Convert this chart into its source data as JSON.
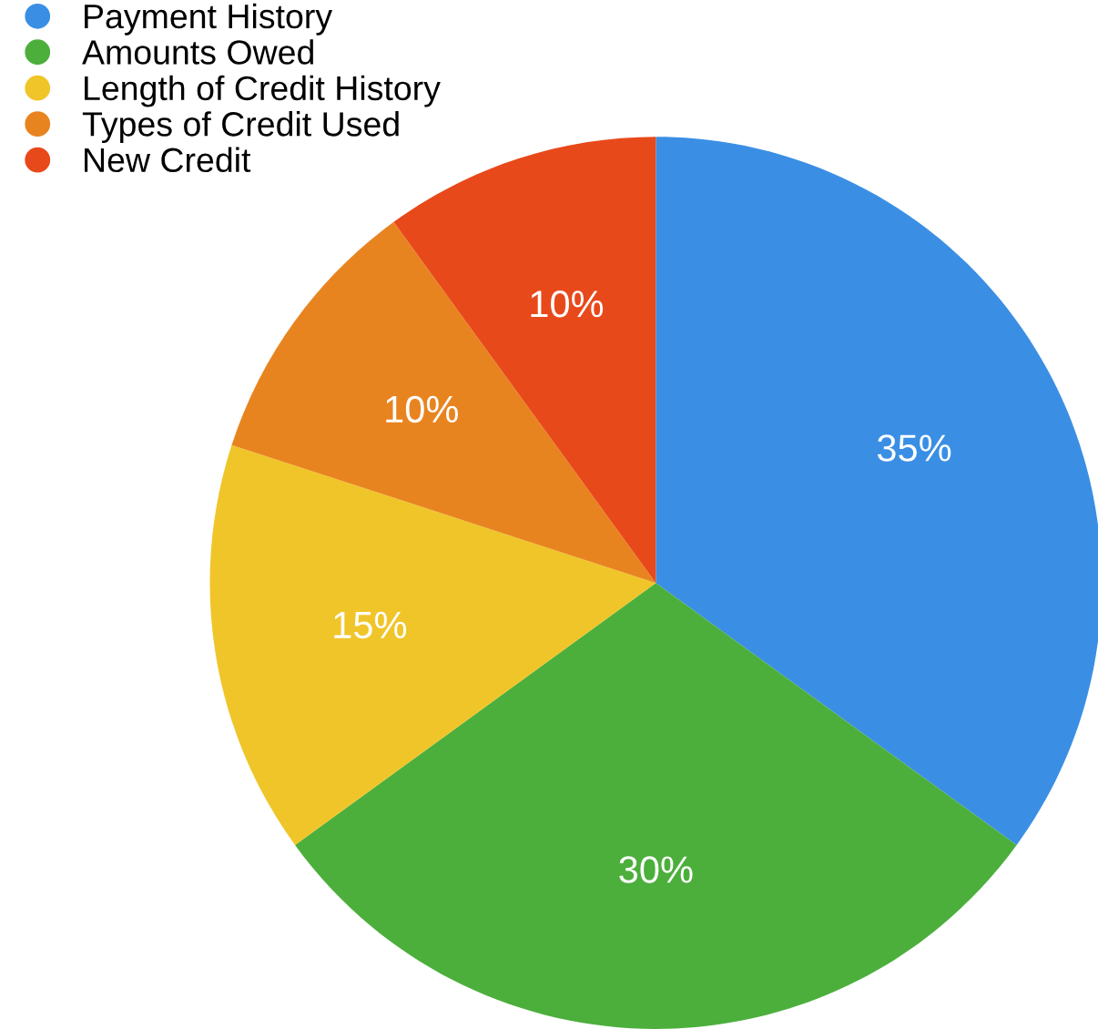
{
  "chart_data": {
    "type": "pie",
    "categories": [
      "Payment History",
      "Amounts Owed",
      "Length of Credit History",
      "Types of Credit Used",
      "New Credit"
    ],
    "values": [
      35,
      30,
      15,
      10,
      10
    ],
    "colors": [
      "#3a8fe4",
      "#4caf3c",
      "#f0c52a",
      "#e8841f",
      "#e8491b"
    ],
    "value_labels": [
      "35%",
      "30%",
      "15%",
      "10%",
      "10%"
    ],
    "legend": "top left"
  }
}
